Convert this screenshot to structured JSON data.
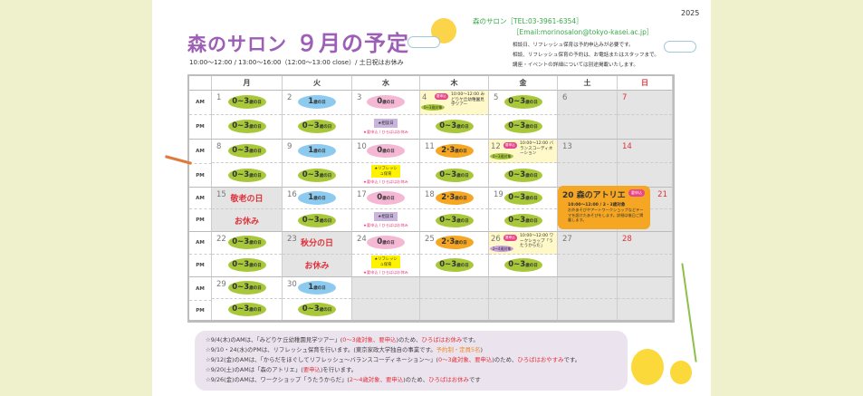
{
  "header": {
    "title": "森のサロン",
    "title_month": "９月の予定",
    "hours": "10:00～12:00 / 13:00～16:00（12:00～13:00 close）/ 土日祝はお休み",
    "year": "2025",
    "contact_tel": "森のサロン［TEL:03-3961-6354］",
    "contact_email": "［Email:morinosalon@tokyo-kasei.ac.jp］",
    "info": [
      "相談日、リフレッシュ保育は予約申込みが必要です。",
      "相談、リフレッシュ保育の予約は、お電話またはスタッフまで。",
      "講座・イベントの詳細については別途掲載いたします。"
    ]
  },
  "calendar": {
    "weekdays": [
      "月",
      "火",
      "水",
      "木",
      "金",
      "土",
      "日"
    ],
    "am_label": "AM",
    "pm_label": "PM",
    "pill_suffix": "歳の日",
    "weeks": [
      [
        {
          "d": "1",
          "am": {
            "t": "pill",
            "c": "green",
            "v": "0~3"
          },
          "pm": {
            "t": "pill",
            "c": "green",
            "v": "0~3"
          }
        },
        {
          "d": "2",
          "am": {
            "t": "pill",
            "c": "blue",
            "v": "1"
          },
          "pm": {
            "t": "pill",
            "c": "green",
            "v": "0~3"
          }
        },
        {
          "d": "3",
          "am": {
            "t": "pill",
            "c": "pink",
            "v": "0"
          },
          "pm": {
            "t": "consult",
            "v": "★相談日",
            "w": "★要申込 / ひろばはお休み"
          }
        },
        {
          "d": "4",
          "am": {
            "t": "event",
            "badge": "要申込",
            "v": "10:00～12:00 みどりケ丘幼稚園見学ツアー",
            "target": "0~3歳対象"
          },
          "pm": {
            "t": "pill",
            "c": "green",
            "v": "0~3"
          }
        },
        {
          "d": "5",
          "am": {
            "t": "pill",
            "c": "green",
            "v": "0~3"
          },
          "pm": {
            "t": "pill",
            "c": "green",
            "v": "0~3"
          }
        },
        {
          "d": "6",
          "gray": true
        },
        {
          "d": "7",
          "gray": true,
          "red": true
        }
      ],
      [
        {
          "d": "8",
          "am": {
            "t": "pill",
            "c": "green",
            "v": "0~3"
          },
          "pm": {
            "t": "pill",
            "c": "green",
            "v": "0~3"
          }
        },
        {
          "d": "9",
          "am": {
            "t": "pill",
            "c": "blue",
            "v": "1"
          },
          "pm": {
            "t": "pill",
            "c": "green",
            "v": "0~3"
          }
        },
        {
          "d": "10",
          "am": {
            "t": "pill",
            "c": "pink",
            "v": "0"
          },
          "pm": {
            "t": "refresh",
            "v": "★リフレッシュ保育",
            "w": "★要申込 / ひろばはお休み"
          }
        },
        {
          "d": "11",
          "am": {
            "t": "pill",
            "c": "orange",
            "v": "2·3"
          },
          "pm": {
            "t": "pill",
            "c": "green",
            "v": "0~3"
          }
        },
        {
          "d": "12",
          "am": {
            "t": "event",
            "badge": "要申込",
            "v": "10:00～12:00 バランスコーディネーション",
            "target": "0~3歳対象"
          },
          "pm": {
            "t": "pill",
            "c": "green",
            "v": "0~3"
          }
        },
        {
          "d": "13",
          "gray": true
        },
        {
          "d": "14",
          "gray": true,
          "red": true
        }
      ],
      [
        {
          "d": "15",
          "gray": true,
          "red": false,
          "am": {
            "t": "hol",
            "v": "敬老の日"
          },
          "pm": {
            "t": "hol",
            "v": "お休み"
          }
        },
        {
          "d": "16",
          "am": {
            "t": "pill",
            "c": "blue",
            "v": "1"
          },
          "pm": {
            "t": "pill",
            "c": "green",
            "v": "0~3"
          }
        },
        {
          "d": "17",
          "am": {
            "t": "pill",
            "c": "pink",
            "v": "0"
          },
          "pm": {
            "t": "consult",
            "v": "★相談日",
            "w": "★要申込 / ひろばはお休み"
          }
        },
        {
          "d": "18",
          "am": {
            "t": "pill",
            "c": "orange",
            "v": "2·3"
          },
          "pm": {
            "t": "pill",
            "c": "green",
            "v": "0~3"
          }
        },
        {
          "d": "19",
          "am": {
            "t": "pill",
            "c": "green",
            "v": "0~3"
          },
          "pm": {
            "t": "pill",
            "c": "green",
            "v": "0~3"
          }
        },
        {
          "d": "",
          "gray": true
        },
        {
          "d": "21",
          "gray": true,
          "red": true
        }
      ],
      [
        {
          "d": "22",
          "am": {
            "t": "pill",
            "c": "green",
            "v": "0~3"
          },
          "pm": {
            "t": "pill",
            "c": "green",
            "v": "0~3"
          }
        },
        {
          "d": "23",
          "gray": true,
          "am": {
            "t": "hol",
            "v": "秋分の日"
          },
          "pm": {
            "t": "hol",
            "v": "お休み"
          }
        },
        {
          "d": "24",
          "am": {
            "t": "pill",
            "c": "pink",
            "v": "0"
          },
          "pm": {
            "t": "refresh",
            "v": "★リフレッシュ保育",
            "w": "★要申込 / ひろばはお休み"
          }
        },
        {
          "d": "25",
          "am": {
            "t": "pill",
            "c": "orange",
            "v": "2·3"
          },
          "pm": {
            "t": "pill",
            "c": "green",
            "v": "0~3"
          }
        },
        {
          "d": "26",
          "am": {
            "t": "event",
            "badge": "要申込",
            "v": "10:00～12:00 ワークショップ「うたうからだ」",
            "target": "2~4歳対象",
            "purple": true
          },
          "pm": {
            "t": "pill",
            "c": "green",
            "v": "0~3"
          }
        },
        {
          "d": "27",
          "gray": true
        },
        {
          "d": "28",
          "gray": true,
          "red": true
        }
      ],
      [
        {
          "d": "29",
          "am": {
            "t": "pill",
            "c": "green",
            "v": "0~3"
          },
          "pm": {
            "t": "pill",
            "c": "green",
            "v": "0~3"
          }
        },
        {
          "d": "30",
          "am": {
            "t": "pill",
            "c": "blue",
            "v": "1"
          },
          "pm": {
            "t": "pill",
            "c": "green",
            "v": "0~3"
          }
        },
        {
          "d": "",
          "gray": true
        },
        {
          "d": "",
          "gray": true
        },
        {
          "d": "",
          "gray": true
        },
        {
          "d": "",
          "gray": true
        },
        {
          "d": "",
          "gray": true
        }
      ]
    ],
    "atelier": {
      "date": "20",
      "title": "森のアトリエ",
      "badge": "要申込",
      "sub": "10:00～12:00 / 2・3歳対象",
      "desc": "お外あそびやアートワークショップなどテーマを設けたあそびをします。詳細は後日ご掲載します。"
    }
  },
  "notes": [
    [
      [
        "☆9/4(木)のAMは、「みどりケ丘幼稚園見学ツアー」(",
        ""
      ],
      [
        "0～3歳対象、要申込",
        "r"
      ],
      [
        ")のため、",
        ""
      ],
      [
        "ひろばはお休み",
        "r"
      ],
      [
        "です。",
        ""
      ]
    ],
    [
      [
        "☆9/10・24(水)のPMは、リフレッシュ保育を行います。(東京家政大学独自の事業です。",
        ""
      ],
      [
        "予約制・定員5名",
        "o"
      ],
      [
        ")",
        ""
      ]
    ],
    [
      [
        "☆9/12(金)のAMは、「からだをほぐしてリフレッシュ～バランスコーディネーション～」(",
        ""
      ],
      [
        "0～3歳対象、要申込",
        "r"
      ],
      [
        ")のため、",
        ""
      ],
      [
        "ひろばはおやすみ",
        "r"
      ],
      [
        "です。",
        ""
      ]
    ],
    [
      [
        "☆9/20(土)のAMは「森のアトリエ」(",
        ""
      ],
      [
        "要申込",
        "r"
      ],
      [
        ")を行います。",
        ""
      ]
    ],
    [
      [
        "☆9/26(金)のAMは、ワークショップ「うたうからだ」(",
        ""
      ],
      [
        "2～4歳対象、要申込",
        "r"
      ],
      [
        ")のため、",
        ""
      ],
      [
        "ひろばはお休み",
        "r"
      ],
      [
        "です",
        ""
      ]
    ]
  ],
  "colors": {
    "green": "#a8c83a",
    "blue": "#8ccbef",
    "pink": "#f5b8d4",
    "orange": "#f5a623",
    "title": "#9c5fb5",
    "red": "#e0313a"
  }
}
